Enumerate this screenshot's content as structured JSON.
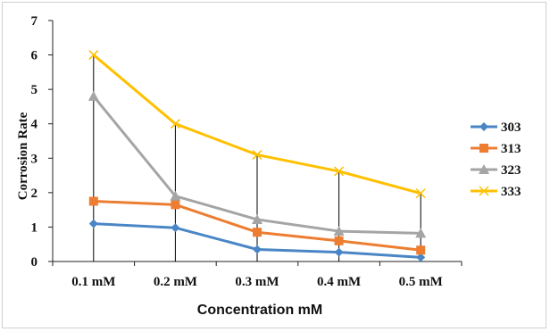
{
  "chart_data": {
    "type": "line",
    "categories": [
      "0.1 mM",
      "0.2 mM",
      "0.3 mM",
      "0.4 mM",
      "0.5 mM"
    ],
    "series": [
      {
        "name": "303",
        "values": [
          1.1,
          0.98,
          0.35,
          0.27,
          0.12
        ],
        "color": "#4a86c5",
        "marker": "diamond"
      },
      {
        "name": "313",
        "values": [
          1.75,
          1.65,
          0.85,
          0.6,
          0.33
        ],
        "color": "#ed7d31",
        "marker": "square"
      },
      {
        "name": "323",
        "values": [
          4.8,
          1.9,
          1.22,
          0.88,
          0.82
        ],
        "color": "#a5a5a5",
        "marker": "triangle"
      },
      {
        "name": "333",
        "values": [
          6.0,
          4.0,
          3.1,
          2.62,
          1.98
        ],
        "color": "#ffc000",
        "marker": "x"
      }
    ],
    "title": "",
    "xlabel": "Concentration  mM",
    "ylabel": "Corrosion Rate",
    "ylim": [
      0,
      7
    ],
    "yticks": [
      "0",
      "1",
      "2",
      "3",
      "4",
      "5",
      "6",
      "7"
    ],
    "grid": false,
    "drop_lines": true,
    "legend_position": "right"
  }
}
